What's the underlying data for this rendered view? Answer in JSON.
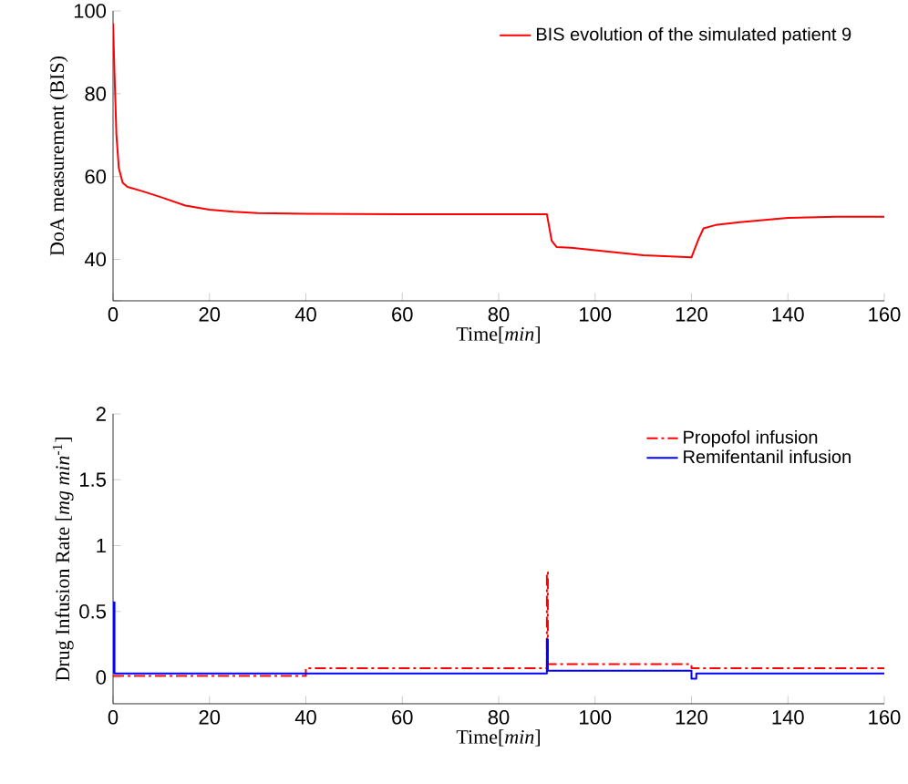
{
  "chart_data": [
    {
      "type": "line",
      "xlabel": "Time[*min*]",
      "ylabel": "DoA measurement (BIS)",
      "xlim": [
        0,
        160
      ],
      "ylim": [
        30,
        100
      ],
      "xticks": [
        0,
        20,
        40,
        60,
        80,
        100,
        120,
        140,
        160
      ],
      "yticks": [
        {
          "value": 30,
          "label": null
        },
        40,
        60,
        80,
        100
      ],
      "legend": "top right",
      "grid": false,
      "marker": "none",
      "series": [
        {
          "name": "BIS evolution of the simulated patient 9",
          "color": "#ff0000",
          "line_style": "solid",
          "x": [
            0,
            0.3,
            0.7,
            1.2,
            2,
            3,
            6,
            10,
            15,
            20,
            25,
            30,
            40,
            60,
            90,
            90.3,
            91,
            92,
            95,
            100,
            110,
            120,
            120.5,
            121.5,
            122.5,
            125,
            130,
            140,
            150,
            160
          ],
          "values": [
            97,
            85,
            70,
            62,
            58.5,
            57.5,
            56.5,
            55,
            53,
            52,
            51.5,
            51.2,
            51,
            50.9,
            50.9,
            49,
            44.5,
            43,
            42.8,
            42.2,
            41,
            40.5,
            42,
            45,
            47.5,
            48.3,
            49,
            50,
            50.3,
            50.3
          ]
        }
      ]
    },
    {
      "type": "line",
      "xlabel": "Time[*min*]",
      "ylabel": "Drug Infusion Rate [*mg min*$^{-1}$]",
      "xlim": [
        0,
        160
      ],
      "ylim": [
        -0.2,
        2
      ],
      "xticks": [
        0,
        20,
        40,
        60,
        80,
        100,
        120,
        140,
        160
      ],
      "yticks": [
        0,
        0.5,
        1,
        1.5,
        2
      ],
      "legend": "top right",
      "grid": false,
      "marker": "none",
      "series": [
        {
          "name": "Propofol infusion",
          "color": "#ff0000",
          "line_style": "dashdot",
          "x": [
            0,
            40,
            40,
            90,
            90,
            90.2,
            90.2,
            120,
            120,
            160
          ],
          "values": [
            0.01,
            0.01,
            0.07,
            0.07,
            0.8,
            0.8,
            0.1,
            0.1,
            0.07,
            0.07
          ]
        },
        {
          "name": "Remifentanil infusion",
          "color": "#0000ff",
          "line_style": "solid",
          "x": [
            0,
            0,
            0.3,
            0.3,
            90,
            90,
            90.2,
            90.2,
            120,
            120,
            121,
            121,
            160
          ],
          "values": [
            0.03,
            0.57,
            0.57,
            0.03,
            0.03,
            0.29,
            0.29,
            0.05,
            0.05,
            -0.01,
            -0.01,
            0.03,
            0.03
          ]
        }
      ]
    }
  ]
}
